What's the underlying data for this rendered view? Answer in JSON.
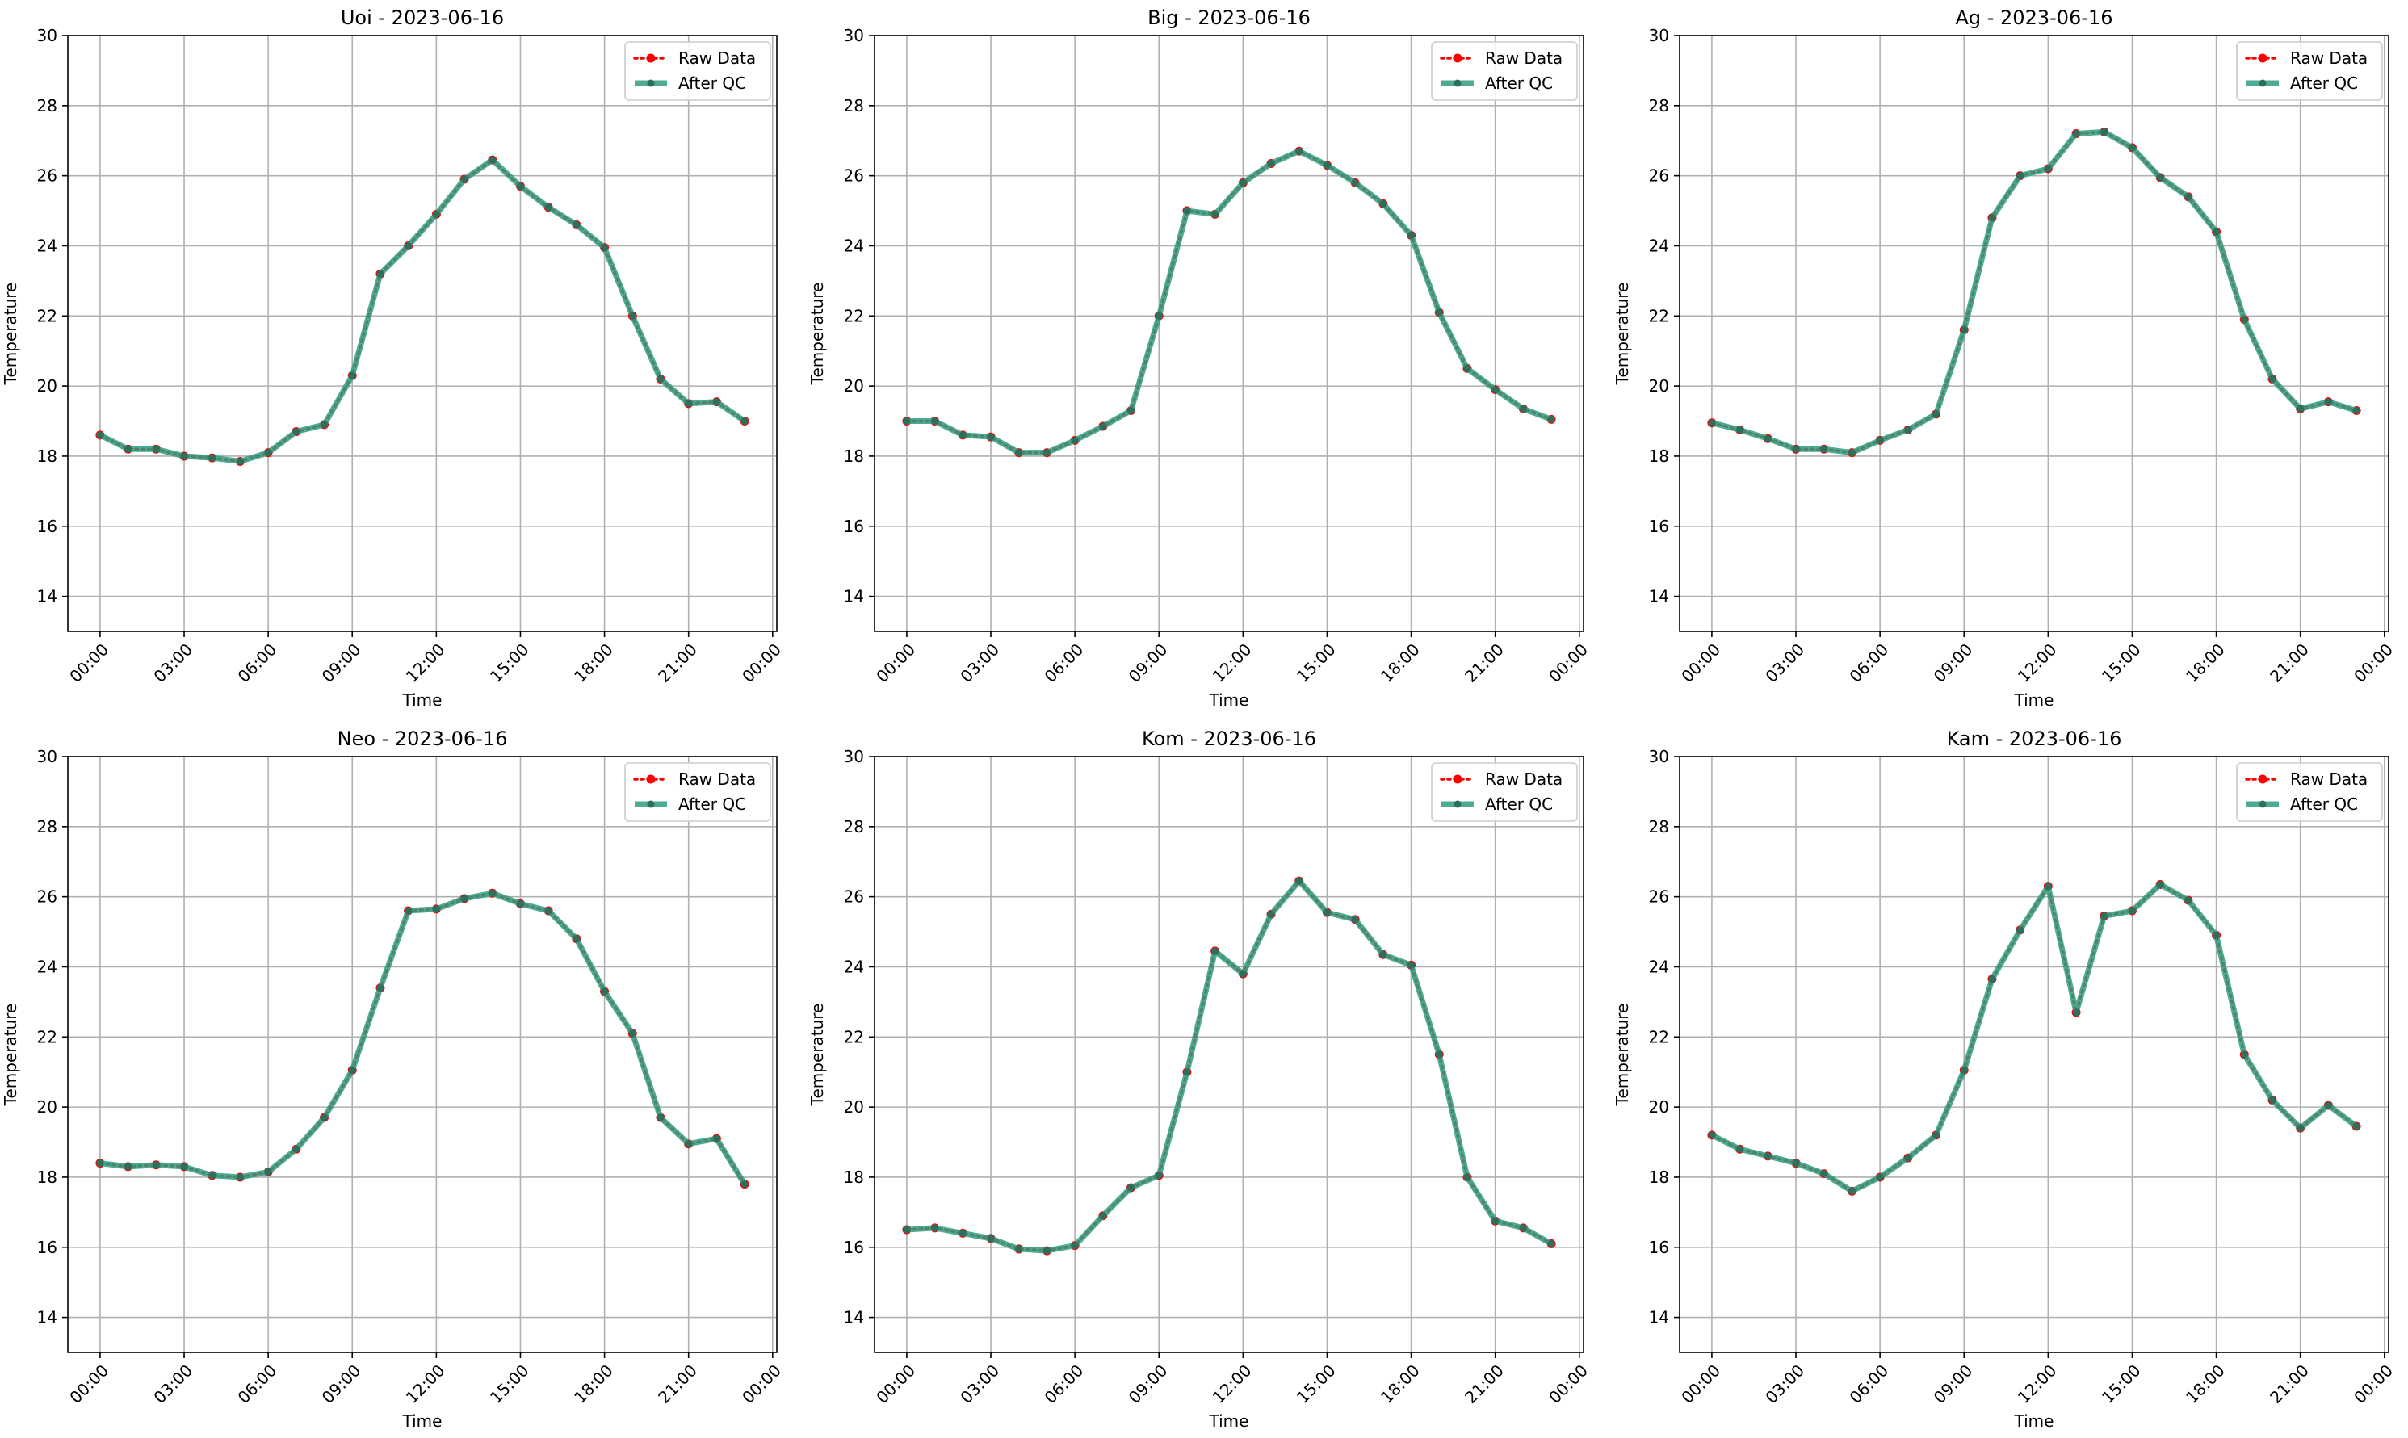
{
  "legend": {
    "raw_label": "Raw Data",
    "qc_label": "After QC",
    "placement": "top-right",
    "raw_color": "#ff0000",
    "qc_color": "#2e9d80",
    "marker_color": "#2d6e5d"
  },
  "chart_data": [
    {
      "type": "line",
      "title": "Uoi - 2023-06-16",
      "xlabel": "Time",
      "ylabel": "Temperature",
      "ylim": [
        13,
        30
      ],
      "yticks": [
        14,
        16,
        18,
        20,
        22,
        24,
        26,
        28,
        30
      ],
      "xticks": [
        "00:00",
        "03:00",
        "06:00",
        "09:00",
        "12:00",
        "15:00",
        "18:00",
        "21:00",
        "00:00"
      ],
      "grid": true,
      "x_hours": [
        0,
        1,
        2,
        3,
        4,
        5,
        6,
        7,
        8,
        9,
        10,
        11,
        12,
        13,
        14,
        15,
        16,
        17,
        18,
        19,
        20,
        21,
        22,
        23
      ],
      "series": [
        {
          "name": "Raw Data",
          "values": [
            18.6,
            18.2,
            18.2,
            18.0,
            17.95,
            17.85,
            18.1,
            18.7,
            18.9,
            20.3,
            23.2,
            24.0,
            24.9,
            25.9,
            26.45,
            25.7,
            25.1,
            24.6,
            23.95,
            22.0,
            20.2,
            19.5,
            19.55,
            19.0
          ]
        },
        {
          "name": "After QC",
          "values": [
            18.6,
            18.2,
            18.2,
            18.0,
            17.95,
            17.85,
            18.1,
            18.7,
            18.9,
            20.3,
            23.2,
            24.0,
            24.9,
            25.9,
            26.45,
            25.7,
            25.1,
            24.6,
            23.95,
            22.0,
            20.2,
            19.5,
            19.55,
            19.0
          ]
        }
      ]
    },
    {
      "type": "line",
      "title": "Big - 2023-06-16",
      "xlabel": "Time",
      "ylabel": "Temperature",
      "ylim": [
        13,
        30
      ],
      "yticks": [
        14,
        16,
        18,
        20,
        22,
        24,
        26,
        28,
        30
      ],
      "xticks": [
        "00:00",
        "03:00",
        "06:00",
        "09:00",
        "12:00",
        "15:00",
        "18:00",
        "21:00",
        "00:00"
      ],
      "grid": true,
      "x_hours": [
        0,
        1,
        2,
        3,
        4,
        5,
        6,
        7,
        8,
        9,
        10,
        11,
        12,
        13,
        14,
        15,
        16,
        17,
        18,
        19,
        20,
        21,
        22,
        23
      ],
      "series": [
        {
          "name": "Raw Data",
          "values": [
            19.0,
            19.0,
            18.6,
            18.55,
            18.1,
            18.1,
            18.45,
            18.85,
            19.3,
            22.0,
            25.0,
            24.9,
            25.8,
            26.35,
            26.7,
            26.3,
            25.8,
            25.2,
            24.3,
            22.1,
            20.5,
            19.9,
            19.35,
            19.05
          ]
        },
        {
          "name": "After QC",
          "values": [
            19.0,
            19.0,
            18.6,
            18.55,
            18.1,
            18.1,
            18.45,
            18.85,
            19.3,
            22.0,
            25.0,
            24.9,
            25.8,
            26.35,
            26.7,
            26.3,
            25.8,
            25.2,
            24.3,
            22.1,
            20.5,
            19.9,
            19.35,
            19.05
          ]
        }
      ]
    },
    {
      "type": "line",
      "title": "Ag - 2023-06-16",
      "xlabel": "Time",
      "ylabel": "Temperature",
      "ylim": [
        13,
        30
      ],
      "yticks": [
        14,
        16,
        18,
        20,
        22,
        24,
        26,
        28,
        30
      ],
      "xticks": [
        "00:00",
        "03:00",
        "06:00",
        "09:00",
        "12:00",
        "15:00",
        "18:00",
        "21:00",
        "00:00"
      ],
      "grid": true,
      "x_hours": [
        0,
        1,
        2,
        3,
        4,
        5,
        6,
        7,
        8,
        9,
        10,
        11,
        12,
        13,
        14,
        15,
        16,
        17,
        18,
        19,
        20,
        21,
        22,
        23
      ],
      "series": [
        {
          "name": "Raw Data",
          "values": [
            18.95,
            18.75,
            18.5,
            18.2,
            18.2,
            18.1,
            18.45,
            18.75,
            19.2,
            21.6,
            24.8,
            26.0,
            26.2,
            27.2,
            27.25,
            26.8,
            25.95,
            25.4,
            24.4,
            21.9,
            20.2,
            19.35,
            19.55,
            19.3
          ]
        },
        {
          "name": "After QC",
          "values": [
            18.95,
            18.75,
            18.5,
            18.2,
            18.2,
            18.1,
            18.45,
            18.75,
            19.2,
            21.6,
            24.8,
            26.0,
            26.2,
            27.2,
            27.25,
            26.8,
            25.95,
            25.4,
            24.4,
            21.9,
            20.2,
            19.35,
            19.55,
            19.3
          ]
        }
      ]
    },
    {
      "type": "line",
      "title": "Neo - 2023-06-16",
      "xlabel": "Time",
      "ylabel": "Temperature",
      "ylim": [
        13,
        30
      ],
      "yticks": [
        14,
        16,
        18,
        20,
        22,
        24,
        26,
        28,
        30
      ],
      "xticks": [
        "00:00",
        "03:00",
        "06:00",
        "09:00",
        "12:00",
        "15:00",
        "18:00",
        "21:00",
        "00:00"
      ],
      "grid": true,
      "x_hours": [
        0,
        1,
        2,
        3,
        4,
        5,
        6,
        7,
        8,
        9,
        10,
        11,
        12,
        13,
        14,
        15,
        16,
        17,
        18,
        19,
        20,
        21,
        22,
        23
      ],
      "series": [
        {
          "name": "Raw Data",
          "values": [
            18.4,
            18.3,
            18.35,
            18.3,
            18.05,
            18.0,
            18.15,
            18.8,
            19.7,
            21.05,
            23.4,
            25.6,
            25.65,
            25.95,
            26.1,
            25.8,
            25.6,
            24.8,
            23.3,
            22.1,
            19.7,
            18.95,
            19.1,
            17.8
          ]
        },
        {
          "name": "After QC",
          "values": [
            18.4,
            18.3,
            18.35,
            18.3,
            18.05,
            18.0,
            18.15,
            18.8,
            19.7,
            21.05,
            23.4,
            25.6,
            25.65,
            25.95,
            26.1,
            25.8,
            25.6,
            24.8,
            23.3,
            22.1,
            19.7,
            18.95,
            19.1,
            17.8
          ]
        }
      ]
    },
    {
      "type": "line",
      "title": "Kom - 2023-06-16",
      "xlabel": "Time",
      "ylabel": "Temperature",
      "ylim": [
        13,
        30
      ],
      "yticks": [
        14,
        16,
        18,
        20,
        22,
        24,
        26,
        28,
        30
      ],
      "xticks": [
        "00:00",
        "03:00",
        "06:00",
        "09:00",
        "12:00",
        "15:00",
        "18:00",
        "21:00",
        "00:00"
      ],
      "grid": true,
      "x_hours": [
        0,
        1,
        2,
        3,
        4,
        5,
        6,
        7,
        8,
        9,
        10,
        11,
        12,
        13,
        14,
        15,
        16,
        17,
        18,
        19,
        20,
        21,
        22,
        23
      ],
      "series": [
        {
          "name": "Raw Data",
          "values": [
            16.5,
            16.55,
            16.4,
            16.25,
            15.95,
            15.9,
            16.05,
            16.9,
            17.7,
            18.05,
            21.0,
            24.45,
            23.8,
            25.5,
            26.45,
            25.55,
            25.35,
            24.35,
            24.05,
            21.5,
            18.0,
            16.75,
            16.55,
            16.1
          ]
        },
        {
          "name": "After QC",
          "values": [
            16.5,
            16.55,
            16.4,
            16.25,
            15.95,
            15.9,
            16.05,
            16.9,
            17.7,
            18.05,
            21.0,
            24.45,
            23.8,
            25.5,
            26.45,
            25.55,
            25.35,
            24.35,
            24.05,
            21.5,
            18.0,
            16.75,
            16.55,
            16.1
          ]
        }
      ]
    },
    {
      "type": "line",
      "title": "Kam - 2023-06-16",
      "xlabel": "Time",
      "ylabel": "Temperature",
      "ylim": [
        13,
        30
      ],
      "yticks": [
        14,
        16,
        18,
        20,
        22,
        24,
        26,
        28,
        30
      ],
      "xticks": [
        "00:00",
        "03:00",
        "06:00",
        "09:00",
        "12:00",
        "15:00",
        "18:00",
        "21:00",
        "00:00"
      ],
      "grid": true,
      "x_hours": [
        0,
        1,
        2,
        3,
        4,
        5,
        6,
        7,
        8,
        9,
        10,
        11,
        12,
        13,
        14,
        15,
        16,
        17,
        18,
        19,
        20,
        21,
        22,
        23
      ],
      "series": [
        {
          "name": "Raw Data",
          "values": [
            19.2,
            18.8,
            18.6,
            18.4,
            18.1,
            17.6,
            18.0,
            18.55,
            19.2,
            21.05,
            23.65,
            25.05,
            26.3,
            22.7,
            25.45,
            25.6,
            26.35,
            25.9,
            24.9,
            21.5,
            20.2,
            19.4,
            20.05,
            19.45
          ]
        },
        {
          "name": "After QC",
          "values": [
            19.2,
            18.8,
            18.6,
            18.4,
            18.1,
            17.6,
            18.0,
            18.55,
            19.2,
            21.05,
            23.65,
            25.05,
            26.3,
            22.7,
            25.45,
            25.6,
            26.35,
            25.9,
            24.9,
            21.5,
            20.2,
            19.4,
            20.05,
            19.45
          ]
        }
      ]
    }
  ]
}
